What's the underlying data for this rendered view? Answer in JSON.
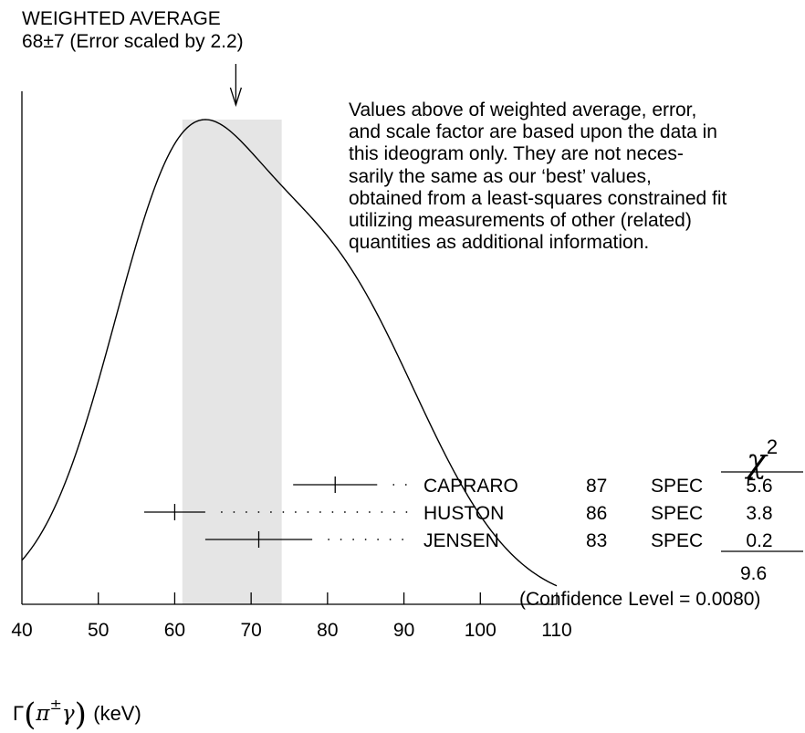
{
  "header": {
    "title": "WEIGHTED AVERAGE",
    "subtitle": "68±7 (Error scaled by 2.2)"
  },
  "note": {
    "lines": [
      "Values above of weighted average, error,",
      "and scale factor are based upon the data in",
      "this ideogram only.  They are not neces-",
      "sarily the same as our ‘best’ values,",
      "obtained from a least-squares constrained fit",
      "utilizing measurements of other (related)",
      "quantities as additional information."
    ]
  },
  "axis": {
    "xlabel_symbol": "Γ",
    "xlabel_particle": "π",
    "xlabel_charge": "±",
    "xlabel_photon": "γ",
    "xlabel_units": "(keV)"
  },
  "table": {
    "chi2_symbol": "χ",
    "chi2_power": "2",
    "total": "9.6",
    "confidence": "(Confidence Level = 0.0080)"
  },
  "chart_data": {
    "type": "ideogram",
    "xlim": [
      40,
      110
    ],
    "xticks": [
      40,
      50,
      60,
      70,
      80,
      90,
      100,
      110
    ],
    "weighted_average": 68,
    "error": 7,
    "scale_factor": 2.2,
    "band": [
      61,
      74
    ],
    "measurements": [
      {
        "name": "CAPRARO",
        "year": "87",
        "tech": "SPEC",
        "value": 81,
        "err_lo": 5.5,
        "err_hi": 5.5,
        "chi2": "5.6"
      },
      {
        "name": "HUSTON",
        "year": "86",
        "tech": "SPEC",
        "value": 60,
        "err_lo": 4.0,
        "err_hi": 4.0,
        "chi2": "3.8"
      },
      {
        "name": "JENSEN",
        "year": "83",
        "tech": "SPEC",
        "value": 71,
        "err_lo": 7.0,
        "err_hi": 7.0,
        "chi2": "0.2"
      }
    ]
  }
}
